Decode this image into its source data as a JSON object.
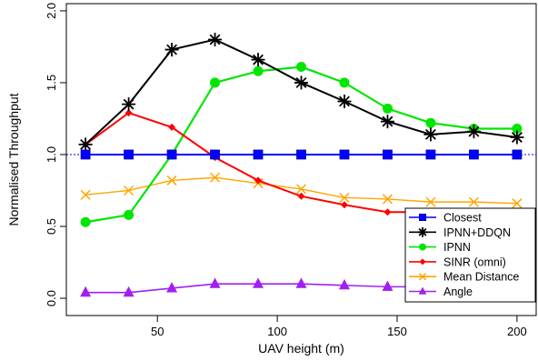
{
  "chart_data": {
    "type": "line",
    "title": "",
    "xlabel": "UAV height (m)",
    "ylabel": "Normalised Throughput",
    "xlim": [
      12,
      208
    ],
    "ylim": [
      -0.12,
      2.05
    ],
    "x_ticks": [
      50,
      100,
      150,
      200
    ],
    "y_ticks": [
      0.0,
      0.5,
      1.0,
      1.5,
      2.0
    ],
    "y_tick_labels": [
      "0.0",
      "0.5",
      "1.0",
      "1.5",
      "2.0"
    ],
    "x": [
      20,
      38,
      56,
      74,
      92,
      110,
      128,
      146,
      164,
      182,
      200
    ],
    "legend_position": "bottom-right",
    "series": [
      {
        "name": "Closest",
        "color": "#0000ff",
        "marker": "square",
        "values": [
          1.0,
          1.0,
          1.0,
          1.0,
          1.0,
          1.0,
          1.0,
          1.0,
          1.0,
          1.0,
          1.0
        ]
      },
      {
        "name": "IPNN+DDQN",
        "color": "#000000",
        "marker": "asterisk",
        "values": [
          1.07,
          1.35,
          1.73,
          1.8,
          1.66,
          1.5,
          1.37,
          1.23,
          1.14,
          1.16,
          1.12
        ]
      },
      {
        "name": "IPNN",
        "color": "#00e600",
        "marker": "circle",
        "values": [
          0.53,
          0.58,
          1.0,
          1.5,
          1.58,
          1.61,
          1.5,
          1.32,
          1.22,
          1.18,
          1.18
        ]
      },
      {
        "name": "SINR (omni)",
        "color": "#ff0000",
        "marker": "diamond",
        "values": [
          1.07,
          1.29,
          1.19,
          0.98,
          0.82,
          0.71,
          0.65,
          0.6,
          0.6,
          0.6,
          0.6
        ]
      },
      {
        "name": "Mean Distance",
        "color": "#ffa500",
        "marker": "x",
        "values": [
          0.72,
          0.75,
          0.82,
          0.84,
          0.8,
          0.76,
          0.7,
          0.69,
          0.67,
          0.67,
          0.66
        ]
      },
      {
        "name": "Angle",
        "color": "#a020f0",
        "marker": "triangle",
        "values": [
          0.04,
          0.04,
          0.07,
          0.1,
          0.1,
          0.1,
          0.09,
          0.08,
          0.08,
          0.08,
          0.07
        ]
      }
    ]
  }
}
